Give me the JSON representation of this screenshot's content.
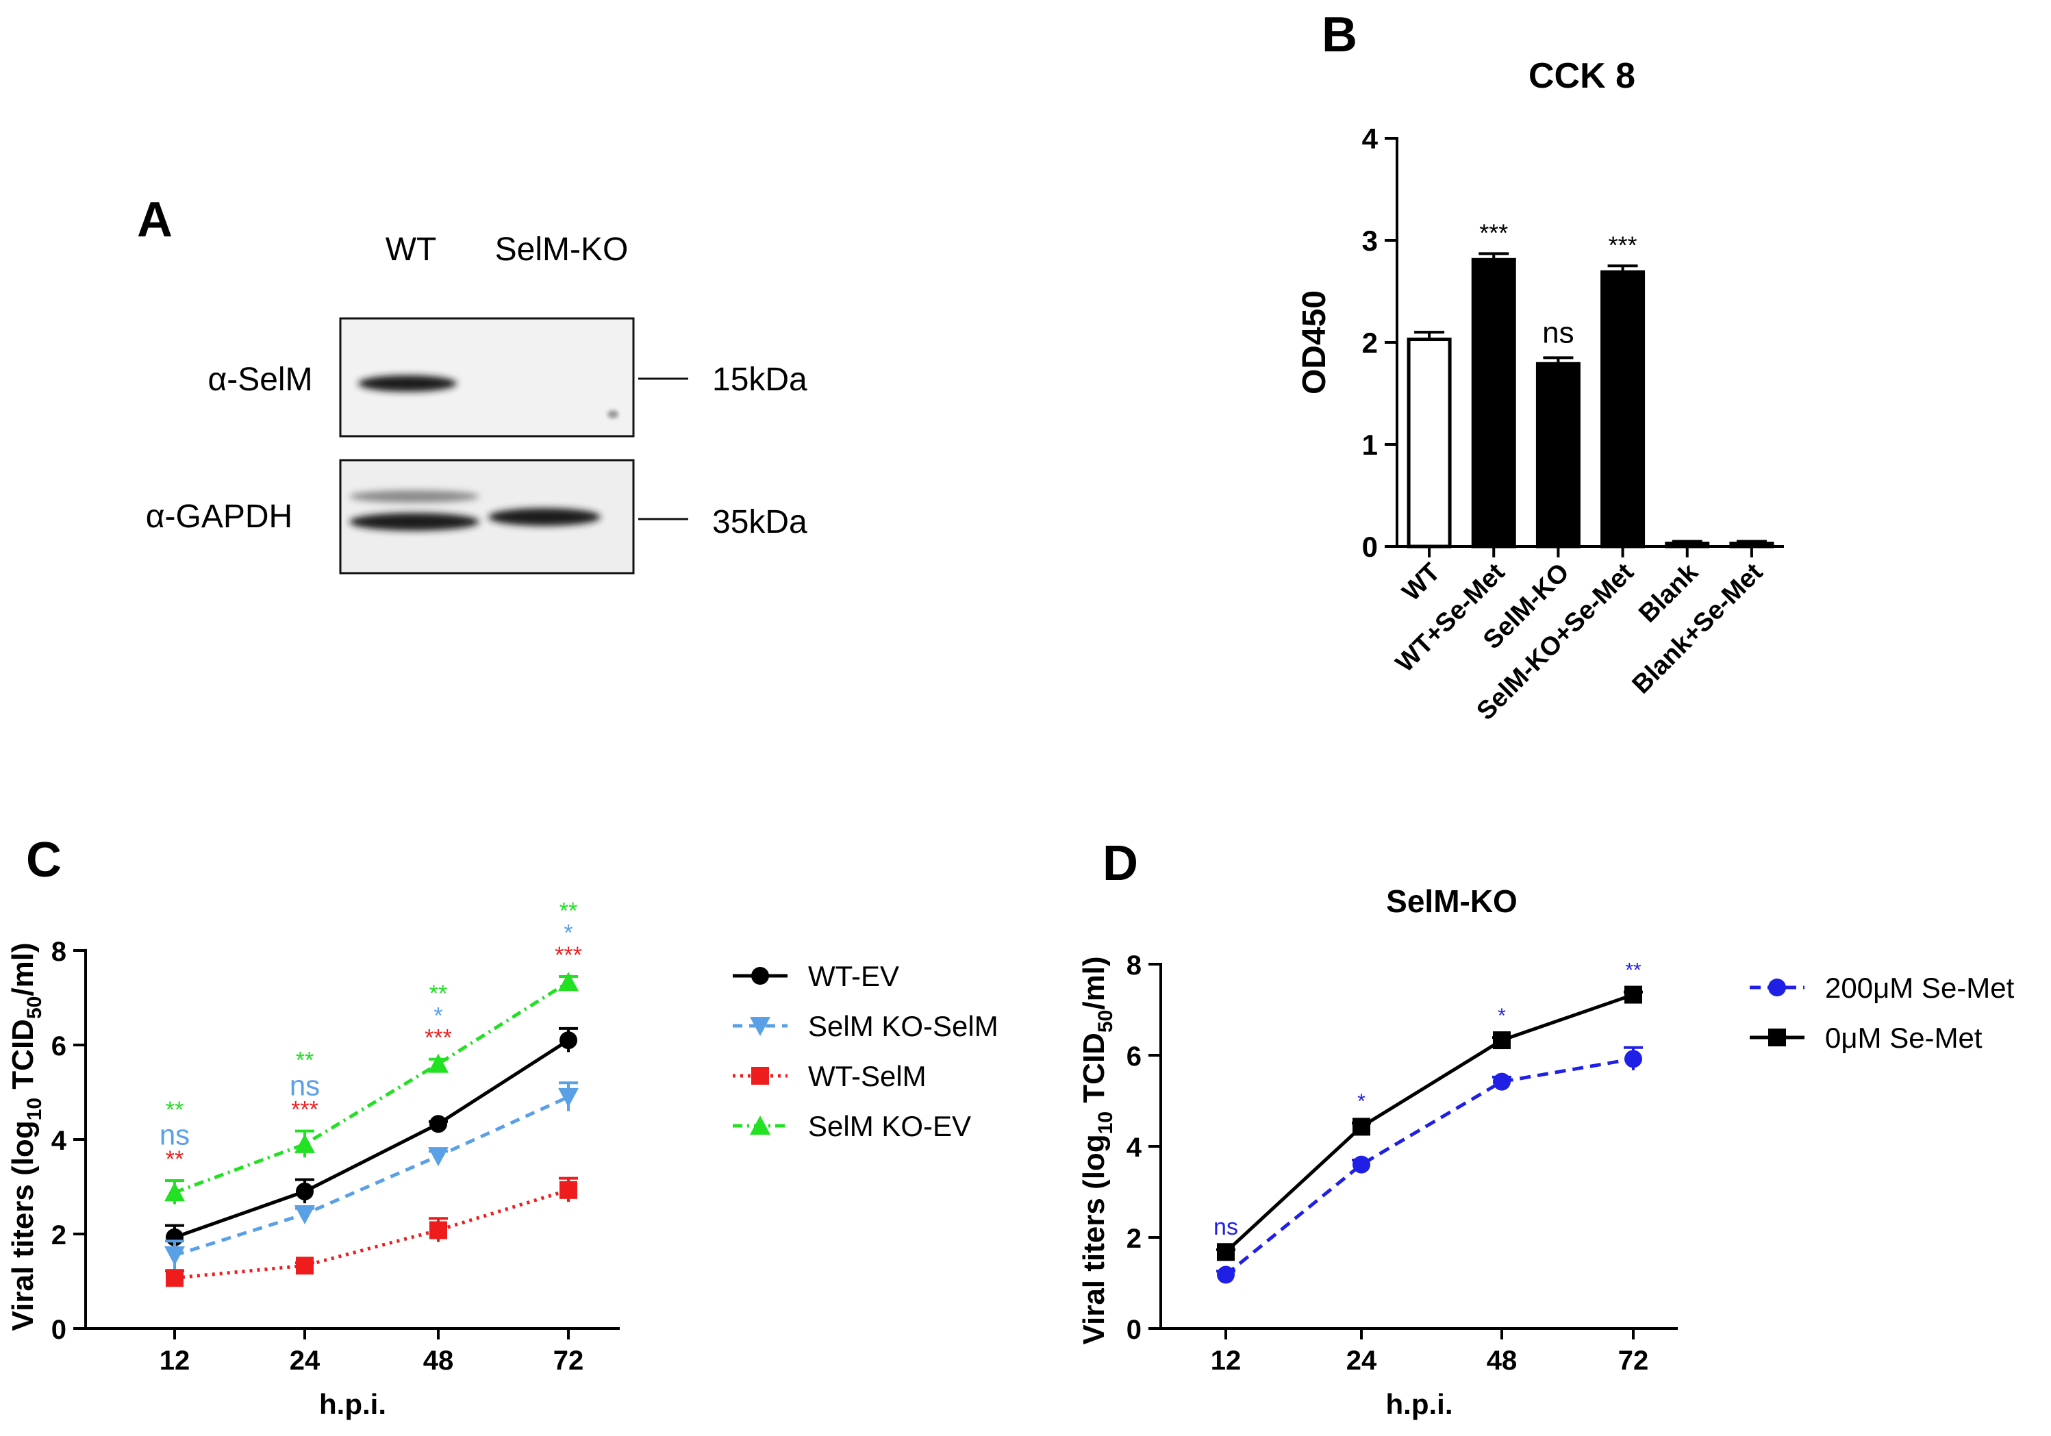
{
  "panel_labels": {
    "a": "A",
    "b": "B",
    "c": "C",
    "d": "D"
  },
  "blot": {
    "lanes": [
      "WT",
      "SelM-KO"
    ],
    "rows": [
      {
        "antibody": "α-SelM",
        "size": "15kDa",
        "band_intensity": [
          1,
          0
        ]
      },
      {
        "antibody": "α-GAPDH",
        "size": "35kDa",
        "band_intensity": [
          1,
          1
        ]
      }
    ]
  },
  "chart_data": [
    {
      "id": "B",
      "type": "bar",
      "title": "CCK 8",
      "ylabel": "OD450",
      "xlabel": "",
      "ylim": [
        0,
        4
      ],
      "yticks": [
        0,
        1,
        2,
        3,
        4
      ],
      "categories": [
        "WT",
        "WT+Se-Met",
        "SelM-KO",
        "SelM-KO+Se-Met",
        "Blank",
        "Blank+Se-Met"
      ],
      "values": [
        2.03,
        2.81,
        1.79,
        2.69,
        0.03,
        0.03
      ],
      "errors": [
        0.07,
        0.06,
        0.06,
        0.06,
        0.02,
        0.02
      ],
      "fills": [
        "#ffffff",
        "#000000",
        "#000000",
        "#000000",
        "#000000",
        "#000000"
      ],
      "annotations": [
        "",
        "***",
        "ns",
        "***",
        "",
        ""
      ]
    },
    {
      "id": "C",
      "type": "line",
      "title": "",
      "xlabel": "h.p.i.",
      "ylabel_main": "Viral titers (log",
      "ylabel_sub": "10",
      "ylabel_mid": " TCID",
      "ylabel_sub2": "50",
      "ylabel_end": "/ml)",
      "ylim": [
        0,
        8
      ],
      "yticks": [
        0,
        2,
        4,
        6,
        8
      ],
      "categories": [
        "12",
        "24",
        "48",
        "72"
      ],
      "series": [
        {
          "name": "WT-EV",
          "color": "#000000",
          "marker": "circle",
          "dash": "",
          "values": [
            1.93,
            2.9,
            4.33,
            6.1
          ],
          "errors": [
            0.25,
            0.25,
            0.05,
            0.25
          ]
        },
        {
          "name": "SelM KO-SelM",
          "color": "#5aa0e6",
          "marker": "tri-down",
          "dash": "14,10",
          "values": [
            1.55,
            2.42,
            3.65,
            4.9
          ],
          "errors": [
            0.3,
            0.12,
            0.1,
            0.3
          ]
        },
        {
          "name": "WT-SelM",
          "color": "#ee1c1c",
          "marker": "square",
          "dash": "4,7",
          "values": [
            1.07,
            1.33,
            2.08,
            2.93
          ],
          "errors": [
            0.15,
            0.06,
            0.25,
            0.25
          ]
        },
        {
          "name": "SelM KO-EV",
          "color": "#22e022",
          "marker": "tri-up",
          "dash": "14,7,3,7",
          "values": [
            2.88,
            3.9,
            5.6,
            7.33
          ],
          "errors": [
            0.25,
            0.28,
            0.1,
            0.12
          ]
        }
      ],
      "significance": [
        {
          "x": "12",
          "marks": [
            {
              "text": "**",
              "color": "#22e022"
            },
            {
              "text": "ns",
              "color": "#5aa0e6"
            },
            {
              "text": "**",
              "color": "#ee1c1c"
            }
          ]
        },
        {
          "x": "24",
          "marks": [
            {
              "text": "**",
              "color": "#22e022"
            },
            {
              "text": "ns",
              "color": "#5aa0e6"
            },
            {
              "text": "***",
              "color": "#ee1c1c"
            }
          ]
        },
        {
          "x": "48",
          "marks": [
            {
              "text": "**",
              "color": "#22e022"
            },
            {
              "text": "*",
              "color": "#5aa0e6"
            },
            {
              "text": "***",
              "color": "#ee1c1c"
            }
          ]
        },
        {
          "x": "72",
          "marks": [
            {
              "text": "**",
              "color": "#22e022"
            },
            {
              "text": "*",
              "color": "#5aa0e6"
            },
            {
              "text": "***",
              "color": "#ee1c1c"
            }
          ]
        }
      ]
    },
    {
      "id": "D",
      "type": "line",
      "title": "SelM-KO",
      "xlabel": "h.p.i.",
      "ylabel_main": "Viral titers (log",
      "ylabel_sub": "10",
      "ylabel_mid": " TCID",
      "ylabel_sub2": "50",
      "ylabel_end": "/ml)",
      "ylim": [
        0,
        8
      ],
      "yticks": [
        0,
        2,
        4,
        6,
        8
      ],
      "categories": [
        "12",
        "24",
        "48",
        "72"
      ],
      "series": [
        {
          "name": "200μM Se-Met",
          "color": "#1f1fe6",
          "marker": "circle",
          "dash": "16,10",
          "values": [
            1.18,
            3.6,
            5.42,
            5.92
          ],
          "errors": [
            0.08,
            0.1,
            0.1,
            0.25
          ]
        },
        {
          "name": "0μM Se-Met",
          "color": "#000000",
          "marker": "square",
          "dash": "",
          "values": [
            1.68,
            4.43,
            6.33,
            7.33
          ],
          "errors": [
            0.05,
            0.08,
            0.06,
            0.06
          ]
        }
      ],
      "significance": [
        {
          "x": "12",
          "marks": [
            {
              "text": "ns",
              "color": "#1f1fe6"
            }
          ]
        },
        {
          "x": "24",
          "marks": [
            {
              "text": "*",
              "color": "#1f1fe6"
            }
          ]
        },
        {
          "x": "48",
          "marks": [
            {
              "text": "*",
              "color": "#1f1fe6"
            }
          ]
        },
        {
          "x": "72",
          "marks": [
            {
              "text": "**",
              "color": "#1f1fe6"
            }
          ]
        }
      ]
    }
  ]
}
